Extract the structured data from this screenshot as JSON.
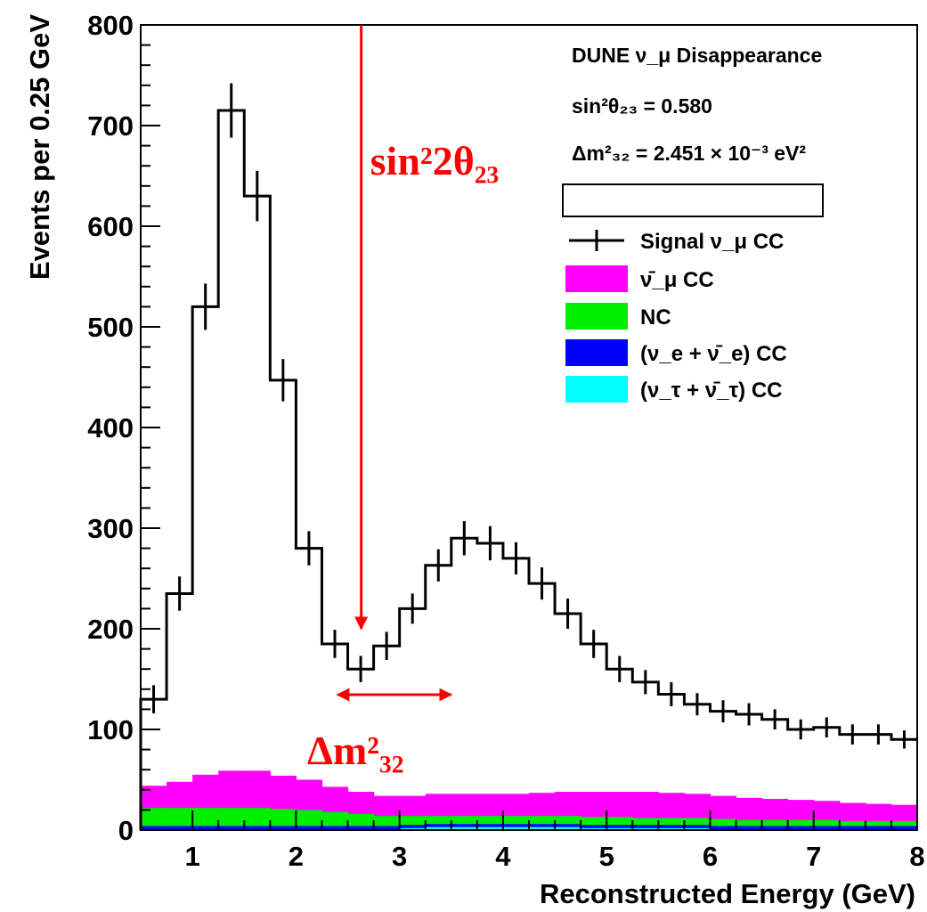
{
  "chart_data": {
    "type": "histogram",
    "xlabel": "Reconstructed Energy (GeV)",
    "ylabel": "Events per 0.25 GeV",
    "xlim": [
      0.5,
      8
    ],
    "ylim": [
      0,
      800
    ],
    "x_ticks": [
      "1",
      "2",
      "3",
      "4",
      "5",
      "6",
      "7",
      "8"
    ],
    "y_ticks": [
      "0",
      "100",
      "200",
      "300",
      "400",
      "500",
      "600",
      "700",
      "800"
    ],
    "bin_width": 0.25,
    "bin_edges": [
      0.5,
      0.75,
      1,
      1.25,
      1.5,
      1.75,
      2,
      2.25,
      2.5,
      2.75,
      3,
      3.25,
      3.5,
      3.75,
      4,
      4.25,
      4.5,
      4.75,
      5,
      5.25,
      5.5,
      5.75,
      6,
      6.25,
      6.5,
      6.75,
      7,
      7.25,
      7.5,
      7.75,
      8
    ],
    "series": [
      {
        "name": "Signal ν_μ CC",
        "style": "histogram-with-errors",
        "color": "#000000",
        "values": [
          130,
          235,
          520,
          715,
          630,
          447,
          280,
          185,
          160,
          183,
          220,
          263,
          290,
          285,
          270,
          245,
          215,
          185,
          160,
          147,
          135,
          125,
          118,
          115,
          110,
          100,
          102,
          95,
          95,
          90
        ],
        "errors": [
          14,
          17,
          23,
          27,
          25,
          21,
          17,
          14,
          13,
          14,
          15,
          16,
          17,
          17,
          16,
          16,
          15,
          14,
          13,
          12,
          12,
          11,
          11,
          11,
          10,
          10,
          10,
          10,
          10,
          9
        ]
      },
      {
        "name": "ν̄_μ CC",
        "style": "filled",
        "color": "#ff00ff",
        "values": [
          22,
          26,
          33,
          37,
          37,
          33,
          30,
          25,
          22,
          20,
          20,
          22,
          22,
          22,
          22,
          23,
          24,
          25,
          25,
          26,
          25,
          24,
          23,
          22,
          21,
          20,
          19,
          18,
          17,
          16
        ]
      },
      {
        "name": "NC",
        "style": "filled",
        "color": "#00ee00",
        "values": [
          18,
          18,
          18,
          18,
          18,
          17,
          16,
          14,
          12,
          10,
          9,
          8,
          8,
          8,
          8,
          8,
          8,
          8,
          8,
          7,
          7,
          7,
          7,
          6,
          6,
          6,
          6,
          5,
          5,
          5
        ]
      },
      {
        "name": "(ν_e + ν̄_e) CC",
        "style": "filled",
        "color": "#0000ff",
        "values": [
          3,
          3,
          3,
          3,
          3,
          3,
          3,
          3,
          3,
          3,
          3,
          3,
          3,
          3,
          3,
          3,
          3,
          3,
          3,
          3,
          3,
          3,
          3,
          3,
          3,
          3,
          3,
          3,
          3,
          3
        ]
      },
      {
        "name": "(ν_τ + ν̄_τ) CC",
        "style": "filled",
        "color": "#00ffff",
        "values": [
          1,
          1,
          1,
          1,
          1,
          1,
          1,
          1,
          1,
          1,
          2,
          3,
          3,
          3,
          3,
          3,
          3,
          2,
          2,
          2,
          2,
          2,
          1,
          1,
          1,
          1,
          1,
          1,
          1,
          1
        ]
      }
    ],
    "info": {
      "title": "DUNE ν_μ Disappearance",
      "param1": "sin²θ₂₃ = 0.580",
      "param2": "Δm²₃₂ = 2.451 × 10⁻³ eV²"
    },
    "legend_placement": "top-right",
    "annotations": [
      {
        "label": "sin²2θ₂₃",
        "type": "vertical-arrow",
        "x": 2.63,
        "y_from": 800,
        "y_to": 200,
        "color": "#ff0000"
      },
      {
        "label": "Δm²₃₂",
        "type": "double-arrow",
        "x_from": 2.4,
        "x_to": 3.5,
        "y": 155,
        "color": "#ff0000"
      }
    ]
  }
}
